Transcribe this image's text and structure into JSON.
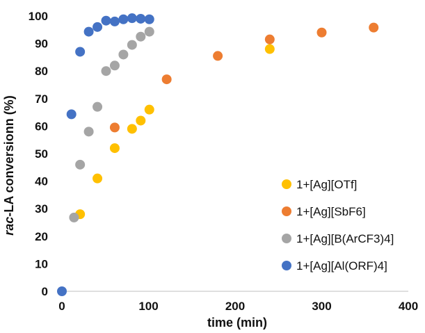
{
  "chart_data": {
    "type": "scatter",
    "title": "",
    "xlabel": "time (min)",
    "ylabel_prefix": "rac",
    "ylabel_rest": "-LA conversionn (%)",
    "xlim": [
      0,
      400
    ],
    "ylim": [
      0,
      100
    ],
    "xticks": [
      0,
      100,
      200,
      300,
      400
    ],
    "yticks": [
      0,
      10,
      20,
      30,
      40,
      50,
      60,
      70,
      80,
      90,
      100
    ],
    "grid": false,
    "legend_position": "bottom-right",
    "series": [
      {
        "name": "1+[Ag][OTf]",
        "color": "#FFC000",
        "points": [
          [
            21,
            28
          ],
          [
            41,
            41
          ],
          [
            61,
            52
          ],
          [
            81,
            59
          ],
          [
            91,
            62
          ],
          [
            101,
            66
          ],
          [
            240,
            88
          ]
        ]
      },
      {
        "name": "1+[Ag][SbF6]",
        "color": "#ED7D31",
        "points": [
          [
            61,
            59.5
          ],
          [
            121,
            77
          ],
          [
            180,
            85.5
          ],
          [
            240,
            91.5
          ],
          [
            300,
            94
          ],
          [
            360,
            95.8
          ]
        ]
      },
      {
        "name": "1+[Ag][B(ArCF3)4]",
        "color": "#A5A5A5",
        "points": [
          [
            14,
            26.8
          ],
          [
            21,
            46
          ],
          [
            31,
            58
          ],
          [
            41,
            67
          ],
          [
            51,
            80
          ],
          [
            61,
            82
          ],
          [
            71,
            86
          ],
          [
            81,
            89.5
          ],
          [
            91,
            92.5
          ],
          [
            101,
            94.3
          ]
        ]
      },
      {
        "name": "1+[Ag][Al(ORF)4]",
        "color": "#4472C4",
        "points": [
          [
            0,
            0
          ],
          [
            11,
            64.3
          ],
          [
            21,
            87
          ],
          [
            31,
            94.3
          ],
          [
            41,
            96
          ],
          [
            51,
            98.3
          ],
          [
            61,
            98
          ],
          [
            71,
            98.8
          ],
          [
            81,
            99.2
          ],
          [
            91,
            99
          ],
          [
            101,
            98.8
          ]
        ]
      }
    ]
  }
}
